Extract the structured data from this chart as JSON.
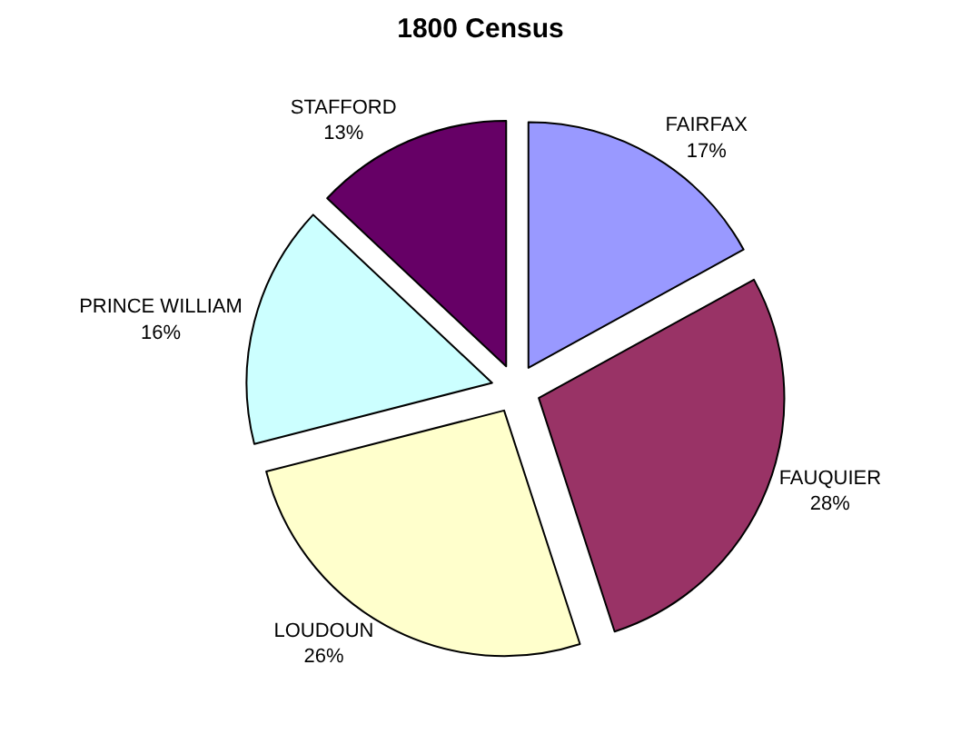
{
  "chart_data": {
    "type": "pie",
    "title": "1800 Census",
    "categories": [
      "FAIRFAX",
      "FAUQUIER",
      "LOUDOUN",
      "PRINCE WILLIAM",
      "STAFFORD"
    ],
    "values": [
      17,
      28,
      26,
      16,
      13
    ],
    "value_labels": [
      "17%",
      "28%",
      "26%",
      "16%",
      "13%"
    ],
    "colors": [
      "#9999ff",
      "#993366",
      "#ffffcc",
      "#ccffff",
      "#660066"
    ],
    "legend": false
  }
}
